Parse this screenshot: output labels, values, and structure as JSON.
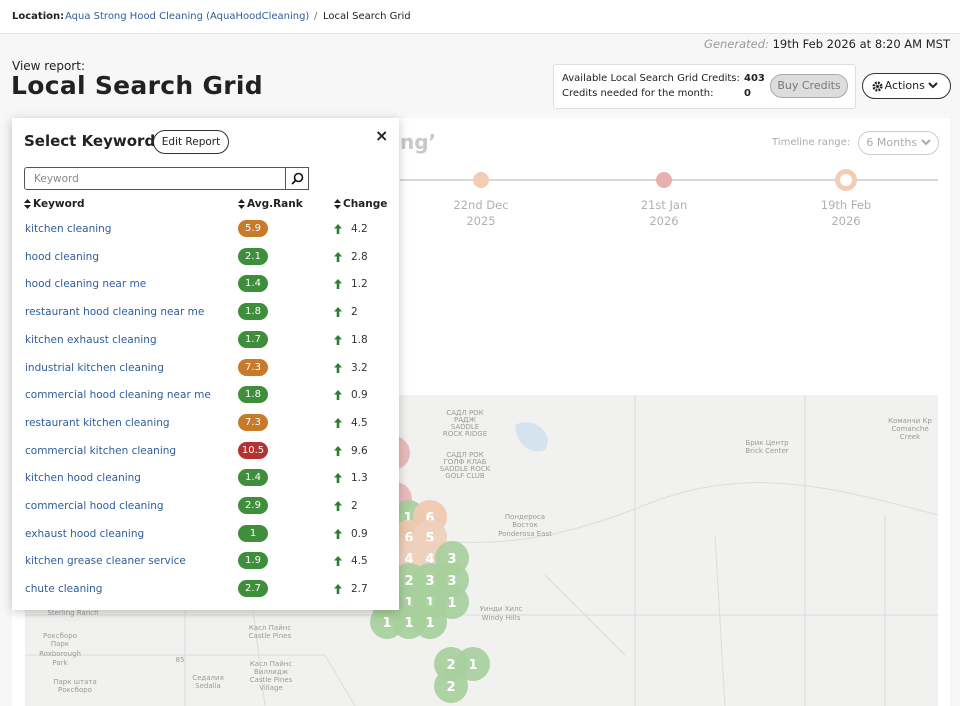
{
  "breadcrumb": {
    "label": "Location:",
    "location": "Aqua Strong Hood Cleaning (AquaHoodCleaning)",
    "separator": "/",
    "current": "Local Search Grid"
  },
  "generated": {
    "label": "Generated:",
    "value": "19th Feb 2026 at 8:20 AM MST"
  },
  "header": {
    "kicker": "View report:",
    "title": "Local Search Grid"
  },
  "credits": {
    "available_label": "Available Local Search Grid Credits:",
    "available": "403",
    "needed_label": "Credits needed for the month:",
    "needed": "0",
    "button": "Buy Credits"
  },
  "actions": "Actions",
  "report": {
    "title_fragment": "ng’",
    "timeline_label": "Timeline range:",
    "timeline_range": "6 Months",
    "timeline": [
      {
        "date": "22nd Dec",
        "year": "2025"
      },
      {
        "date": "21st Jan",
        "year": "2026"
      },
      {
        "date": "19th Feb",
        "year": "2026"
      }
    ]
  },
  "map": {
    "labels": [
      "САДЛ РОК",
      "РАДЖ",
      "SADDLE",
      "ROCK RIDGE",
      "САДЛ РОК",
      "ГОЛФ КЛАБ",
      "SADDLE ROCK",
      "GOLF CLUB",
      "Брик Центр",
      "Brick Center",
      "Команчи Кр",
      "Comanche",
      "Creek",
      "Пондероса",
      "Восток",
      "Ponderosa East",
      "Уинди Хилс",
      "Windy Hills",
      "Sterling Ranch",
      "Роксборо",
      "Парк",
      "Roxborough",
      "Park",
      "Касл Пайнс",
      "Castle Pines",
      "Касл Пайнс",
      "Виллидж",
      "Castle Pines",
      "Village",
      "Парк штата",
      "Роксборо",
      "Седалия",
      "Sedalia",
      "85"
    ],
    "pins": [
      "1",
      "6",
      "6",
      "5",
      "4",
      "4",
      "3",
      "2",
      "3",
      "3",
      "1",
      "1",
      "1",
      "1",
      "1",
      "1",
      "1",
      "2",
      "1",
      "2"
    ]
  },
  "keyword_panel": {
    "title": "Select Keyword",
    "edit_button": "Edit Report",
    "close": "×",
    "search_placeholder": "Keyword",
    "columns": [
      "Keyword",
      "Avg.Rank",
      "Change"
    ],
    "rows": [
      {
        "keyword": "kitchen cleaning",
        "avg_rank": 5.9,
        "change": 4.2
      },
      {
        "keyword": "hood cleaning",
        "avg_rank": 2.1,
        "change": 2.8
      },
      {
        "keyword": "hood cleaning near me",
        "avg_rank": 1.4,
        "change": 1.2
      },
      {
        "keyword": "restaurant hood cleaning near me",
        "avg_rank": 1.8,
        "change": 2
      },
      {
        "keyword": "kitchen exhaust cleaning",
        "avg_rank": 1.7,
        "change": 1.8
      },
      {
        "keyword": "industrial kitchen cleaning",
        "avg_rank": 7.3,
        "change": 3.2
      },
      {
        "keyword": "commercial hood cleaning near me",
        "avg_rank": 1.8,
        "change": 0.9
      },
      {
        "keyword": "restaurant kitchen cleaning",
        "avg_rank": 7.3,
        "change": 4.5
      },
      {
        "keyword": "commercial kitchen cleaning",
        "avg_rank": 10.5,
        "change": 9.6
      },
      {
        "keyword": "kitchen hood cleaning",
        "avg_rank": 1.4,
        "change": 1.3
      },
      {
        "keyword": "commercial hood cleaning",
        "avg_rank": 2.9,
        "change": 2
      },
      {
        "keyword": "exhaust hood cleaning",
        "avg_rank": 1,
        "change": 0.9
      },
      {
        "keyword": "kitchen grease cleaner service",
        "avg_rank": 1.9,
        "change": 4.5
      },
      {
        "keyword": "chute cleaning",
        "avg_rank": 2.7,
        "change": 2.7
      }
    ]
  }
}
